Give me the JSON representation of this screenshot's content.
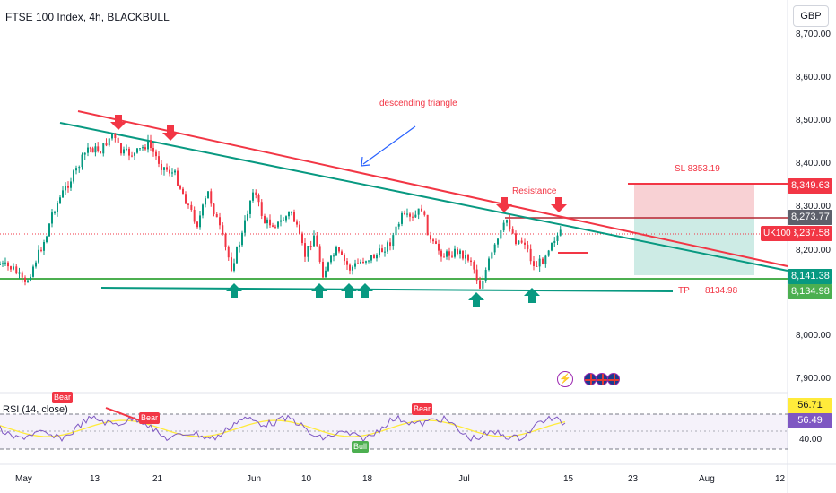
{
  "header": {
    "title": "FTSE 100 Index, 4h, BLACKBULL",
    "currency_button": "GBP"
  },
  "price_axis": {
    "labels": [
      "8,700.00",
      "8,600.00",
      "8,500.00",
      "8,400.00",
      "8,300.00",
      "8,200.00",
      "8,000.00",
      "7,900.00"
    ],
    "tags": [
      {
        "value": "8,349.63",
        "color": "#f23645"
      },
      {
        "value": "8,273.77",
        "color": "#5d606b"
      },
      {
        "value": "8,237.58",
        "color": "#f23645"
      },
      {
        "value": "8,141.38",
        "color": "#089981"
      },
      {
        "value": "8,134.98",
        "color": "#4caf50"
      }
    ],
    "ticker_tag": "UK100"
  },
  "time_axis": {
    "labels": [
      "May",
      "13",
      "21",
      "Jun",
      "10",
      "18",
      "Jul",
      "15",
      "23",
      "Aug",
      "12"
    ]
  },
  "annotations": {
    "pattern_label": "descending triangle",
    "resistance_label": "Resistance",
    "stop_loss_label": "SL",
    "stop_loss_value": "8353.19",
    "take_profit_label": "TP",
    "take_profit_value": "8134.98"
  },
  "rsi_panel": {
    "label": "RSI (14, close)",
    "value_tags": [
      {
        "value": "56.71",
        "color": "#ffeb3b",
        "text_color": "#131722"
      },
      {
        "value": "56.49",
        "color": "#7e57c2",
        "text_color": "#ffffff"
      }
    ],
    "axis_labels": [
      "40.00"
    ],
    "signals": [
      {
        "text": "Bear",
        "color": "#f23645"
      },
      {
        "text": "Bear",
        "color": "#f23645"
      },
      {
        "text": "Bear",
        "color": "#f23645"
      },
      {
        "text": "Bull",
        "color": "#4caf50"
      }
    ]
  },
  "icons": {
    "event_icon": "lightning-icon",
    "country_icon": "uk-flag-icon"
  },
  "colors": {
    "up_candle": "#089981",
    "down_candle": "#f23645",
    "resistance_line": "#f23645",
    "support_line": "#089981",
    "rsi_line": "#7e57c2",
    "rsi_ma": "#ffeb3b"
  }
}
